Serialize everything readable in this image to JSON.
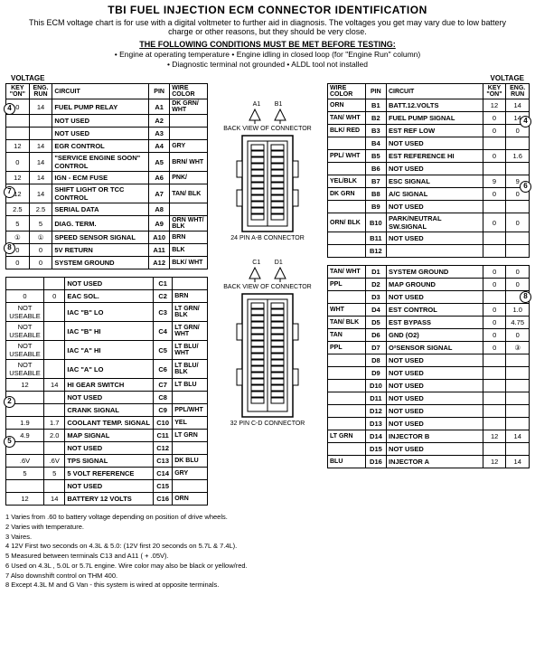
{
  "title": "TBI FUEL INJECTION ECM CONNECTOR IDENTIFICATION",
  "desc": "This ECM voltage chart is for use with a digital voltmeter to further aid in diagnosis. The voltages you get may vary due to low battery charge or other reasons, but they should be very close.",
  "cond_hdr": "THE FOLLOWING CONDITIONS MUST BE MET BEFORE TESTING:",
  "cond1": "• Engine at operating temperature   • Engine idling in closed loop (for \"Engine Run\" column)",
  "cond2": "• Diagnostic terminal not grounded   • ALDL tool not installed",
  "vlabel": "VOLTAGE",
  "hdr": {
    "key": "KEY \"ON\"",
    "run": "ENG. RUN",
    "circ": "CIRCUIT",
    "pin": "PIN",
    "wire": "WIRE COLOR"
  },
  "left_a": [
    {
      "k": "0",
      "r": "14",
      "c": "FUEL PUMP RELAY",
      "p": "A1",
      "w": "DK GRN/ WHT"
    },
    {
      "k": "",
      "r": "",
      "c": "NOT USED",
      "p": "A2",
      "w": ""
    },
    {
      "k": "",
      "r": "",
      "c": "NOT USED",
      "p": "A3",
      "w": ""
    },
    {
      "k": "12",
      "r": "14",
      "c": "EGR CONTROL",
      "p": "A4",
      "w": "GRY"
    },
    {
      "k": "0",
      "r": "14",
      "c": "\"SERVICE ENGINE SOON\" CONTROL",
      "p": "A5",
      "w": "BRN/ WHT"
    },
    {
      "k": "12",
      "r": "14",
      "c": "IGN - ECM FUSE",
      "p": "A6",
      "w": "PNK/"
    },
    {
      "k": "12",
      "r": "14",
      "c": "SHIFT LIGHT OR TCC CONTROL",
      "p": "A7",
      "w": "TAN/ BLK"
    },
    {
      "k": "2.5",
      "r": "2.5",
      "c": "SERIAL DATA",
      "p": "A8",
      "w": ""
    },
    {
      "k": "5",
      "r": "5",
      "c": "DIAG. TERM.",
      "p": "A9",
      "w": "ORN WHT/ BLK"
    },
    {
      "k": "①",
      "r": "①",
      "c": "SPEED SENSOR SIGNAL",
      "p": "A10",
      "w": "BRN"
    },
    {
      "k": "0",
      "r": "0",
      "c": "5V RETURN",
      "p": "A11",
      "w": "BLK"
    },
    {
      "k": "0",
      "r": "0",
      "c": "SYSTEM GROUND",
      "p": "A12",
      "w": "BLK/ WHT"
    }
  ],
  "left_c": [
    {
      "k": "",
      "r": "",
      "c": "NOT USED",
      "p": "C1",
      "w": ""
    },
    {
      "k": "0",
      "r": "0",
      "c": "EAC SOL.",
      "p": "C2",
      "w": "BRN"
    },
    {
      "k": "NOT USEABLE",
      "r": "",
      "c": "IAC \"B\" LO",
      "p": "C3",
      "w": "LT GRN/ BLK"
    },
    {
      "k": "NOT USEABLE",
      "r": "",
      "c": "IAC \"B\" HI",
      "p": "C4",
      "w": "LT GRN/ WHT"
    },
    {
      "k": "NOT USEABLE",
      "r": "",
      "c": "IAC \"A\" HI",
      "p": "C5",
      "w": "LT BLU/ WHT"
    },
    {
      "k": "NOT USEABLE",
      "r": "",
      "c": "IAC \"A\" LO",
      "p": "C6",
      "w": "LT BLU/ BLK"
    },
    {
      "k": "12",
      "r": "14",
      "c": "HI GEAR SWITCH",
      "p": "C7",
      "w": "LT BLU"
    },
    {
      "k": "",
      "r": "",
      "c": "NOT USED",
      "p": "C8",
      "w": ""
    },
    {
      "k": "",
      "r": "",
      "c": "CRANK SIGNAL",
      "p": "C9",
      "w": "PPL/WHT"
    },
    {
      "k": "1.9",
      "r": "1.7",
      "c": "COOLANT TEMP. SIGNAL",
      "p": "C10",
      "w": "YEL"
    },
    {
      "k": "4.9",
      "r": "2.0",
      "c": "MAP SIGNAL",
      "p": "C11",
      "w": "LT GRN"
    },
    {
      "k": "",
      "r": "",
      "c": "NOT USED",
      "p": "C12",
      "w": ""
    },
    {
      "k": ".6V",
      "r": ".6V",
      "c": "TPS SIGNAL",
      "p": "C13",
      "w": "DK BLU"
    },
    {
      "k": "5",
      "r": "5",
      "c": "5 VOLT REFERENCE",
      "p": "C14",
      "w": "GRY"
    },
    {
      "k": "",
      "r": "",
      "c": "NOT USED",
      "p": "C15",
      "w": ""
    },
    {
      "k": "12",
      "r": "14",
      "c": "BATTERY 12 VOLTS",
      "p": "C16",
      "w": "ORN"
    }
  ],
  "right_b": [
    {
      "w": "ORN",
      "p": "B1",
      "c": "BATT.12.VOLTS",
      "k": "12",
      "r": "14"
    },
    {
      "w": "TAN/ WHT",
      "p": "B2",
      "c": "FUEL PUMP SIGNAL",
      "k": "0",
      "r": "14"
    },
    {
      "w": "BLK/ RED",
      "p": "B3",
      "c": "EST REF LOW",
      "k": "0",
      "r": "0"
    },
    {
      "w": "",
      "p": "B4",
      "c": "NOT USED",
      "k": "",
      "r": ""
    },
    {
      "w": "PPL/ WHT",
      "p": "B5",
      "c": "EST REFERENCE HI",
      "k": "0",
      "r": "1.6"
    },
    {
      "w": "",
      "p": "B6",
      "c": "NOT USED",
      "k": "",
      "r": ""
    },
    {
      "w": "YEL/BLK",
      "p": "B7",
      "c": "ESC SIGNAL",
      "k": "9",
      "r": "9"
    },
    {
      "w": "DK GRN",
      "p": "B8",
      "c": "A/C SIGNAL",
      "k": "0",
      "r": "0"
    },
    {
      "w": "",
      "p": "B9",
      "c": "NOT USED",
      "k": "",
      "r": ""
    },
    {
      "w": "ORN/ BLK",
      "p": "B10",
      "c": "PARK/NEUTRAL SW.SIGNAL",
      "k": "0",
      "r": "0"
    },
    {
      "w": "",
      "p": "B11",
      "c": "NOT USED",
      "k": "",
      "r": ""
    },
    {
      "w": "",
      "p": "B12",
      "c": "",
      "k": "",
      "r": ""
    }
  ],
  "right_d": [
    {
      "w": "TAN/ WHT",
      "p": "D1",
      "c": "SYSTEM GROUND",
      "k": "0",
      "r": "0"
    },
    {
      "w": "PPL",
      "p": "D2",
      "c": "MAP GROUND",
      "k": "0",
      "r": "0"
    },
    {
      "w": "",
      "p": "D3",
      "c": "NOT USED",
      "k": "",
      "r": ""
    },
    {
      "w": "WHT",
      "p": "D4",
      "c": "EST CONTROL",
      "k": "0",
      "r": "1.0"
    },
    {
      "w": "TAN/ BLK",
      "p": "D5",
      "c": "EST BYPASS",
      "k": "0",
      "r": "4.75"
    },
    {
      "w": "TAN",
      "p": "D6",
      "c": "GND (O2)",
      "k": "0",
      "r": "0"
    },
    {
      "w": "PPL",
      "p": "D7",
      "c": "O²SENSOR SIGNAL",
      "k": "0",
      "r": "③"
    },
    {
      "w": "",
      "p": "D8",
      "c": "NOT USED",
      "k": "",
      "r": ""
    },
    {
      "w": "",
      "p": "D9",
      "c": "NOT USED",
      "k": "",
      "r": ""
    },
    {
      "w": "",
      "p": "D10",
      "c": "NOT USED",
      "k": "",
      "r": ""
    },
    {
      "w": "",
      "p": "D11",
      "c": "NOT USED",
      "k": "",
      "r": ""
    },
    {
      "w": "",
      "p": "D12",
      "c": "NOT USED",
      "k": "",
      "r": ""
    },
    {
      "w": "",
      "p": "D13",
      "c": "NOT USED",
      "k": "",
      "r": ""
    },
    {
      "w": "LT GRN",
      "p": "D14",
      "c": "INJECTOR B",
      "k": "12",
      "r": "14"
    },
    {
      "w": "",
      "p": "D15",
      "c": "NOT USED",
      "k": "",
      "r": ""
    },
    {
      "w": "BLU",
      "p": "D16",
      "c": "INJECTOR A",
      "k": "12",
      "r": "14"
    }
  ],
  "conn1_top": "BACK VIEW OF CONNECTOR",
  "conn1_lbl": "24 PIN A-B CONNECTOR",
  "conn2_top": "BACK VIEW OF CONNECTOR",
  "conn2_lbl": "32 PIN C-D CONNECTOR",
  "a1": "A1",
  "b1": "B1",
  "c1": "C1",
  "d1": "D1",
  "footnotes": [
    "1  Varies from .60 to battery voltage depending on position of drive wheels.",
    "2  Varies with temperature.",
    "3  Vaires.",
    "4  12V First two seconds on 4.3L & 5.0: (12V first 20 seconds on 5.7L & 7.4L).",
    "5  Measured between terminals C13 and A11 ( + .05V).",
    "6  Used on 4.3L , 5.0L or 5.7L engine. Wire color may also be black or yellow/red.",
    "7  Also downshift control on THM 400.",
    "8  Except 4.3L M and G Van - this system is wired at opposite terminals."
  ],
  "bullets": {
    "b4": "4",
    "b7": "7",
    "b8": "8",
    "b2": "2",
    "b5": "5",
    "b6": "6"
  }
}
